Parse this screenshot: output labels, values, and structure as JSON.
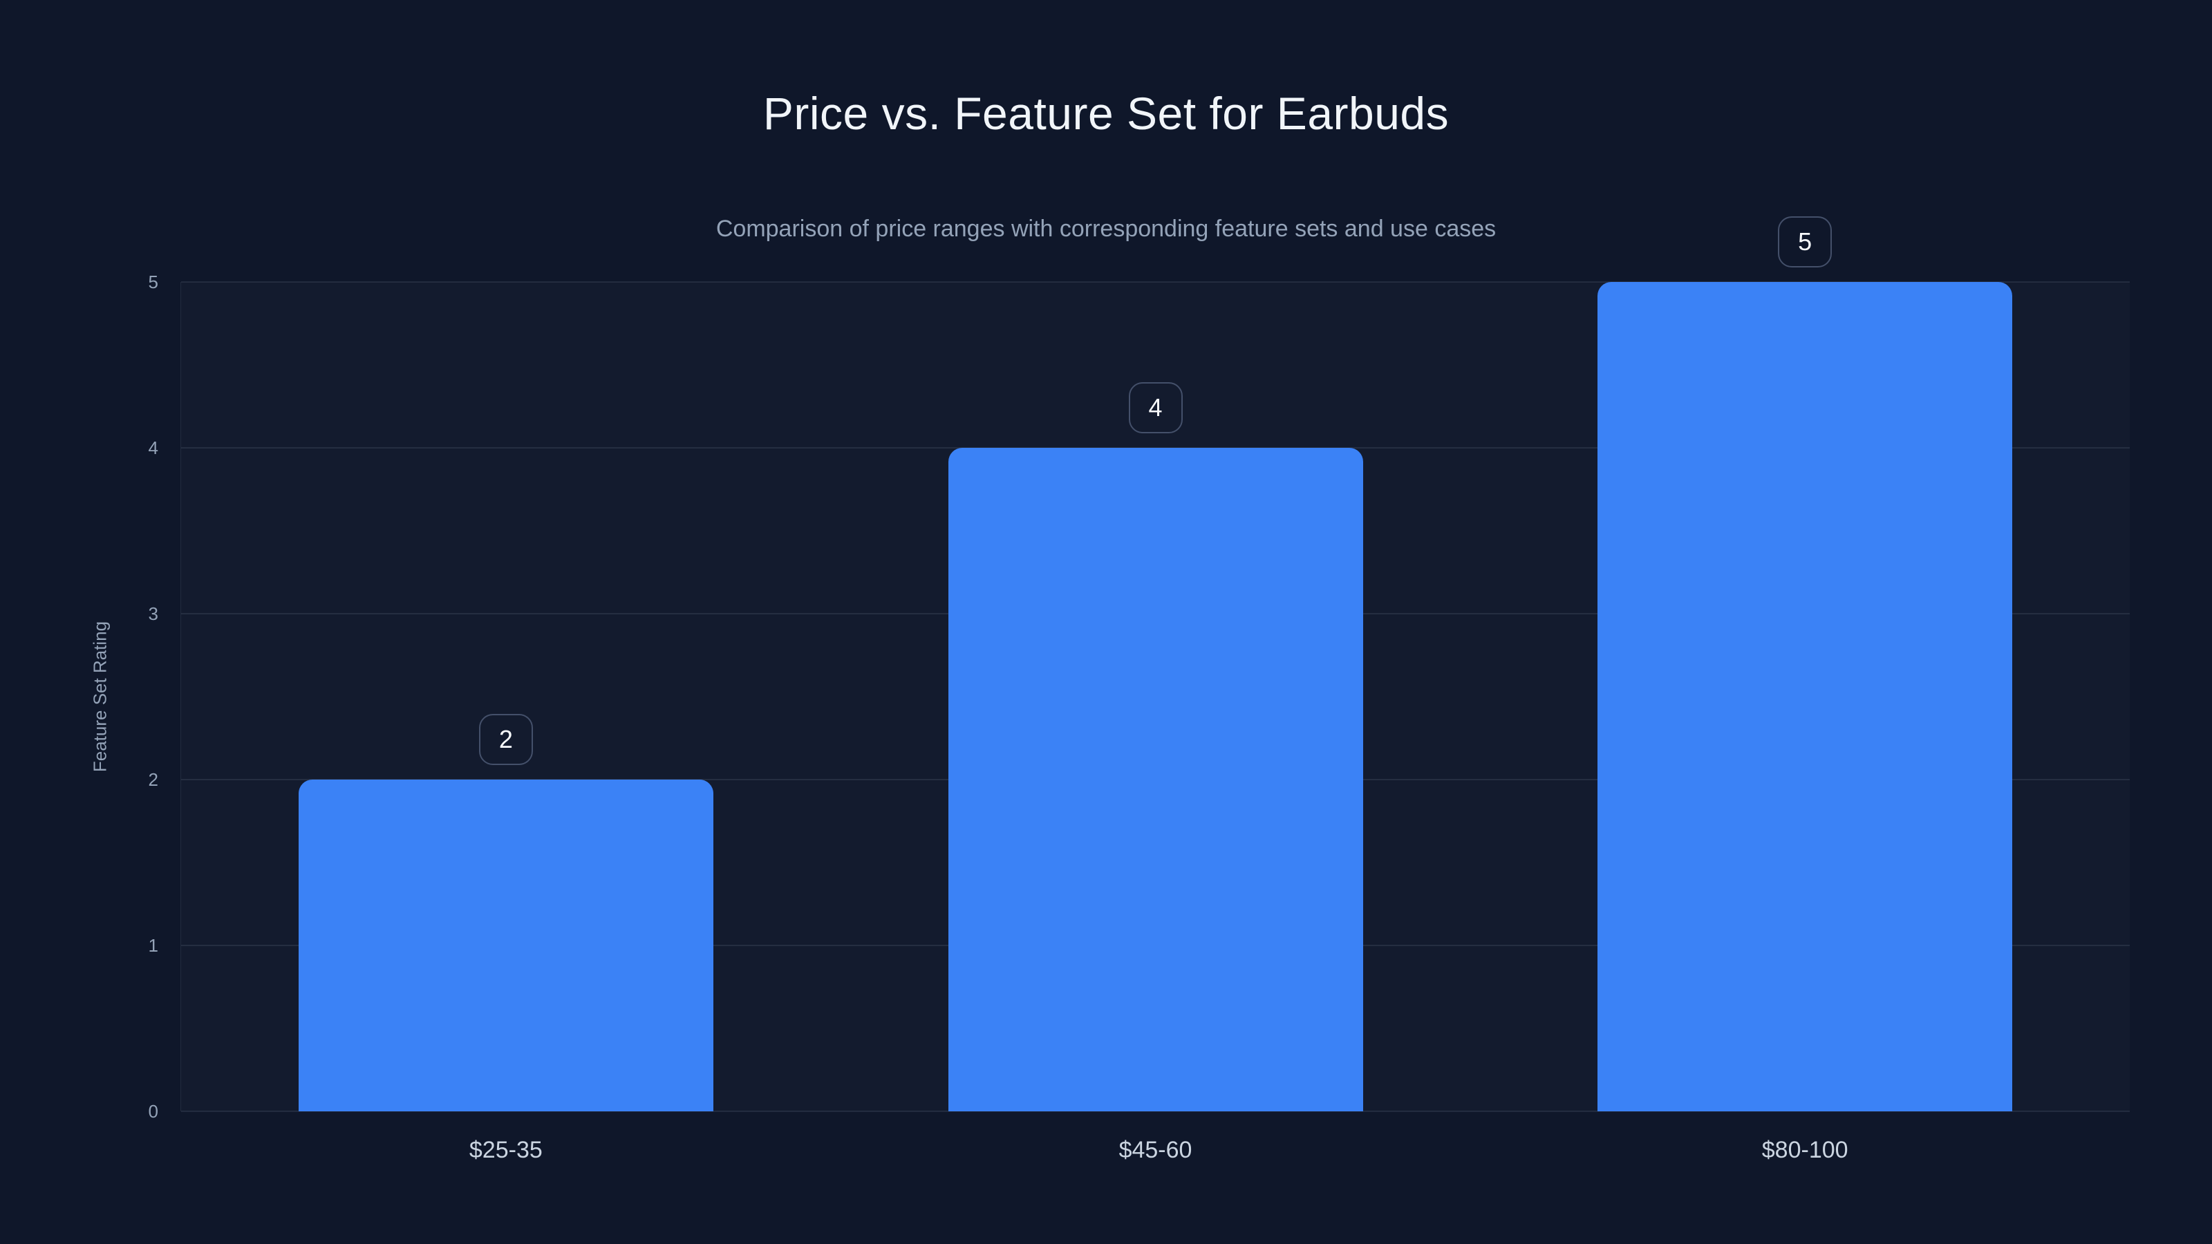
{
  "chart_data": {
    "type": "bar",
    "title": "Price vs. Feature Set for Earbuds",
    "subtitle": "Comparison of price ranges with corresponding feature sets and use cases",
    "categories": [
      "$25-35",
      "$45-60",
      "$80-100"
    ],
    "values": [
      2,
      4,
      5
    ],
    "value_labels": [
      "2",
      "4",
      "5"
    ],
    "xlabel": "",
    "ylabel": "Feature Set Rating",
    "ylim": [
      0,
      5
    ],
    "yticks": [
      0,
      1,
      2,
      3,
      4,
      5
    ],
    "grid": "horizontal-only",
    "legend_position": "none",
    "colors": {
      "background": "#0f172a",
      "bar_fill": "#3b82f6",
      "title_text": "#f1f5f9",
      "subtitle_text": "#94a3b8",
      "axis_text": "#94a3b8",
      "category_text": "#cbd5e1",
      "gridline": "rgba(148,163,184,0.14)",
      "badge_border": "#44506a",
      "badge_text": "#f8fafc"
    }
  }
}
